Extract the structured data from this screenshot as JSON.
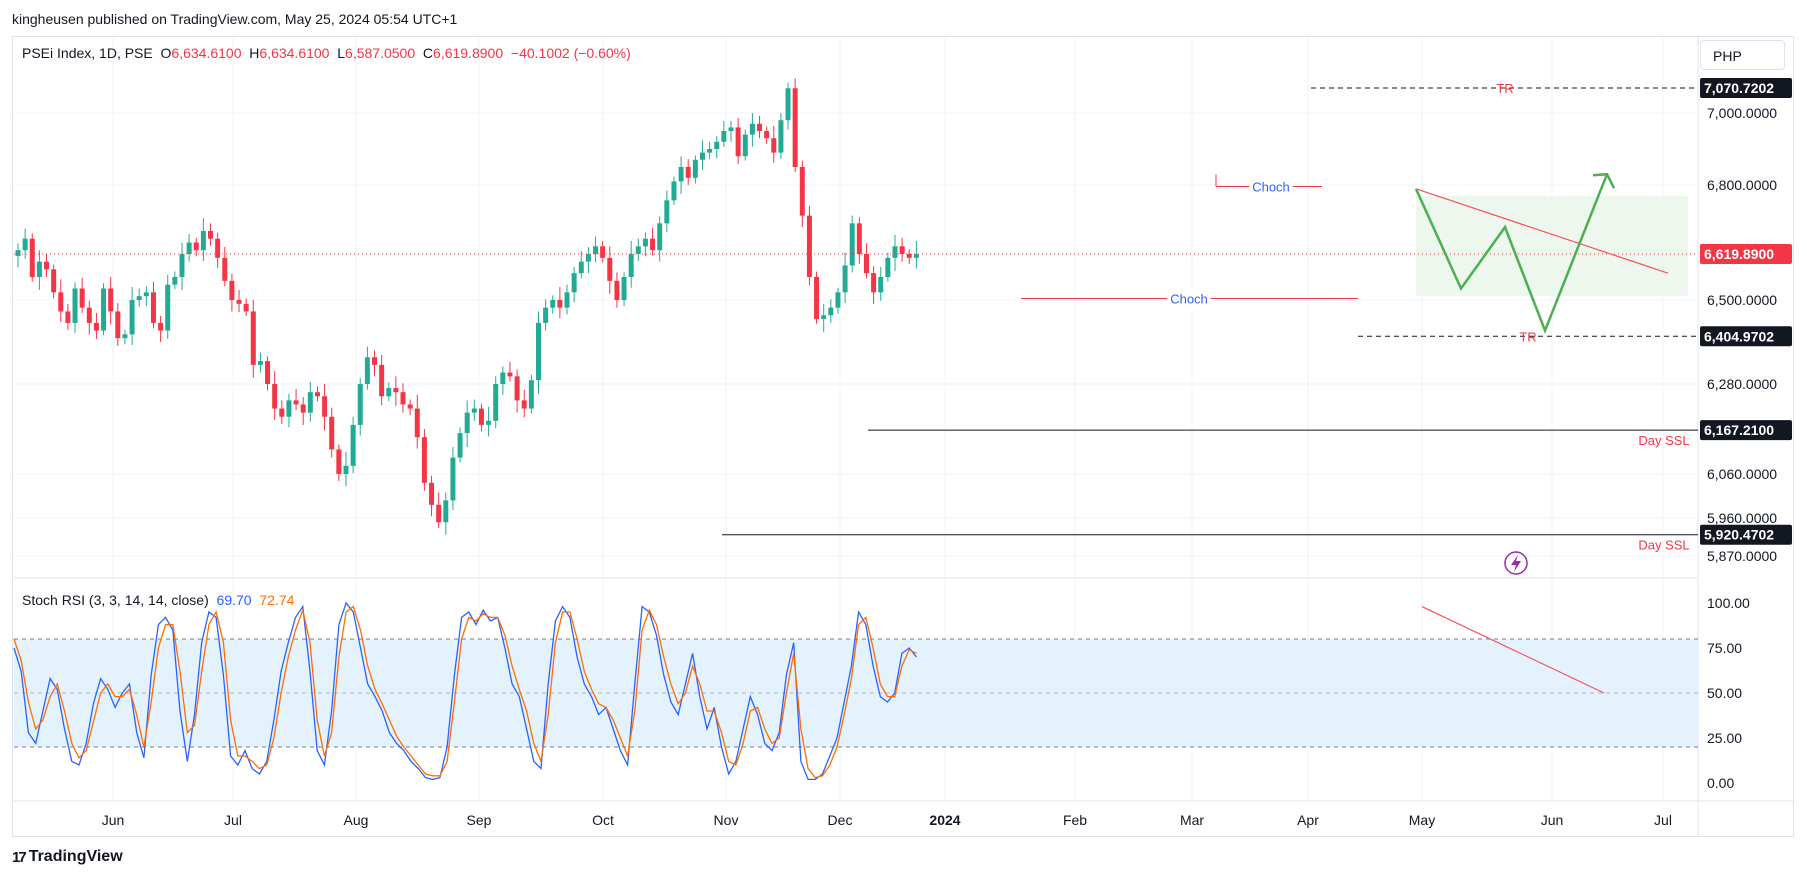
{
  "publisher_line": "kingheusen published on TradingView.com, May 25, 2024 05:54 UTC+1",
  "legend": {
    "symbol": "PSEi Index, 1D, PSE",
    "open_prefix": "O",
    "open": "6,634.6100",
    "high_prefix": "H",
    "high": "6,634.6100",
    "low_prefix": "L",
    "low": "6,587.0500",
    "close_prefix": "C",
    "close": "6,619.8900",
    "change": "−40.1002 (−0.60%)"
  },
  "currency": "PHP",
  "rsi_legend": {
    "label": "Stoch RSI (3, 3, 14, 14, close)",
    "k": "69.70",
    "d": "72.74"
  },
  "branding": "TradingView",
  "colors": {
    "up": "#22ab94",
    "down": "#f23645",
    "k_line": "#2962ff",
    "d_line": "#ff6d00",
    "projection": "#4caf50",
    "trendline": "#f7525f",
    "choch_text": "#2962ff",
    "rsi_band": "#e3f2fd",
    "range_box": "#e8f5e9"
  },
  "chart_data": [
    {
      "type": "candlestick",
      "name": "PSEi Index, 1D, PSE",
      "x_ticks": [
        "Jun",
        "Jul",
        "Aug",
        "Sep",
        "Oct",
        "Nov",
        "Dec",
        "2024",
        "Feb",
        "Mar",
        "Apr",
        "May",
        "Jun",
        "Jul"
      ],
      "y_ticks": [
        "7,000.0000",
        "6,800.0000",
        "6,500.0000",
        "6,280.0000",
        "6,060.0000",
        "5,960.0000",
        "5,870.0000"
      ],
      "price_labels": [
        {
          "value": "7,070.7202",
          "style": "dark"
        },
        {
          "value": "6,619.8900",
          "style": "last"
        },
        {
          "value": "6,404.9702",
          "style": "dark"
        },
        {
          "value": "6,167.2100",
          "style": "dark"
        },
        {
          "value": "5,920.4702",
          "style": "dark"
        }
      ],
      "close_series": [
        6630,
        6660,
        6560,
        6600,
        6580,
        6520,
        6470,
        6440,
        6530,
        6480,
        6440,
        6420,
        6530,
        6470,
        6400,
        6410,
        6500,
        6510,
        6520,
        6440,
        6420,
        6540,
        6560,
        6620,
        6650,
        6630,
        6680,
        6660,
        6610,
        6550,
        6500,
        6490,
        6470,
        6330,
        6340,
        6280,
        6220,
        6200,
        6240,
        6230,
        6210,
        6260,
        6250,
        6200,
        6120,
        6060,
        6080,
        6180,
        6280,
        6350,
        6330,
        6250,
        6270,
        6260,
        6230,
        6220,
        6150,
        6040,
        5990,
        5950,
        6000,
        6100,
        6160,
        6210,
        6220,
        6180,
        6190,
        6280,
        6310,
        6300,
        6240,
        6220,
        6290,
        6440,
        6480,
        6500,
        6480,
        6520,
        6570,
        6600,
        6620,
        6640,
        6610,
        6550,
        6500,
        6560,
        6620,
        6640,
        6660,
        6630,
        6700,
        6760,
        6810,
        6850,
        6820,
        6870,
        6890,
        6900,
        6920,
        6950,
        6960,
        6880,
        6940,
        6970,
        6950,
        6930,
        6890,
        6980,
        7070,
        6850,
        6720,
        6560,
        6450,
        6460,
        6480,
        6520,
        6590,
        6700,
        6620,
        6570,
        6520,
        6560,
        6610,
        6640,
        6620,
        6610,
        6620
      ],
      "annotations": [
        {
          "text": "TR",
          "value": "7,070.7202"
        },
        {
          "text": "TR",
          "value": "6,404.9702"
        },
        {
          "text": "Choch"
        },
        {
          "text": "Choch"
        },
        {
          "text": "Day SSL",
          "value": "6,167.2100"
        },
        {
          "text": "Day SSL",
          "value": "5,920.4702"
        }
      ]
    },
    {
      "type": "line",
      "name": "Stoch RSI (3, 3, 14, 14, close)",
      "y_ticks": [
        "100.00",
        "75.00",
        "50.00",
        "25.00",
        "0.00"
      ],
      "bands": [
        20,
        50,
        80
      ],
      "series": [
        {
          "name": "K",
          "values": [
            75,
            62,
            28,
            22,
            40,
            58,
            52,
            30,
            12,
            10,
            22,
            44,
            58,
            52,
            42,
            50,
            55,
            28,
            14,
            60,
            88,
            92,
            85,
            40,
            12,
            38,
            78,
            95,
            92,
            60,
            15,
            10,
            18,
            8,
            5,
            12,
            35,
            62,
            78,
            92,
            98,
            62,
            18,
            10,
            40,
            88,
            100,
            95,
            75,
            55,
            48,
            40,
            28,
            22,
            18,
            12,
            8,
            3,
            2,
            3,
            20,
            60,
            92,
            95,
            88,
            96,
            90,
            92,
            75,
            55,
            48,
            30,
            12,
            8,
            55,
            90,
            98,
            92,
            70,
            55,
            48,
            38,
            42,
            30,
            18,
            10,
            55,
            98,
            95,
            82,
            60,
            45,
            38,
            55,
            72,
            48,
            30,
            42,
            20,
            5,
            12,
            30,
            48,
            38,
            22,
            18,
            28,
            60,
            78,
            12,
            2,
            2,
            5,
            15,
            25,
            45,
            65,
            95,
            88,
            65,
            48,
            45,
            50,
            72,
            75,
            70
          ]
        },
        {
          "name": "D",
          "values": [
            80,
            68,
            45,
            30,
            35,
            48,
            55,
            40,
            22,
            14,
            18,
            34,
            50,
            55,
            48,
            48,
            52,
            38,
            20,
            45,
            75,
            88,
            88,
            62,
            28,
            32,
            62,
            88,
            95,
            78,
            35,
            15,
            15,
            12,
            8,
            10,
            25,
            50,
            70,
            85,
            96,
            78,
            35,
            15,
            28,
            70,
            95,
            98,
            85,
            65,
            52,
            44,
            35,
            26,
            20,
            15,
            10,
            5,
            4,
            4,
            12,
            45,
            80,
            92,
            90,
            94,
            92,
            92,
            82,
            65,
            52,
            40,
            22,
            12,
            38,
            78,
            95,
            95,
            80,
            62,
            52,
            44,
            42,
            35,
            25,
            15,
            40,
            85,
            96,
            88,
            70,
            55,
            44,
            50,
            65,
            55,
            40,
            40,
            28,
            12,
            10,
            22,
            40,
            42,
            30,
            22,
            25,
            50,
            72,
            30,
            8,
            3,
            4,
            10,
            20,
            38,
            58,
            88,
            92,
            75,
            55,
            48,
            48,
            65,
            74,
            72
          ]
        }
      ]
    }
  ]
}
